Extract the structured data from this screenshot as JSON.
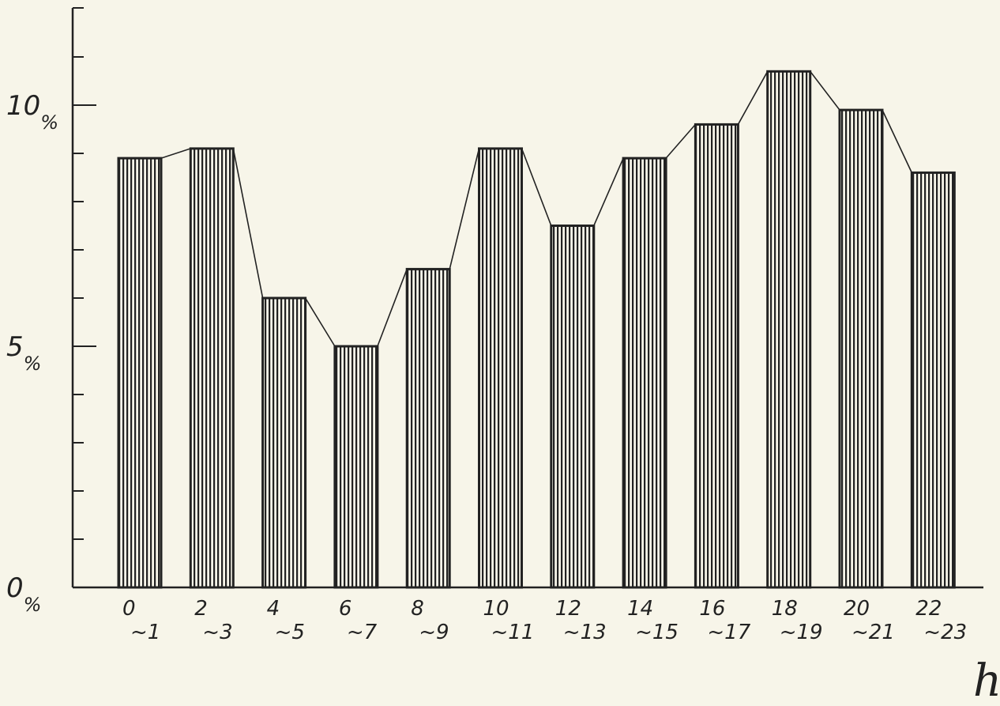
{
  "colors": {
    "background": "#f7f5e9",
    "ink": "#222222",
    "bar_fill": "#dcdcd2"
  },
  "chart_data": {
    "type": "bar",
    "categories": [
      {
        "top": "0",
        "bottom": "~1"
      },
      {
        "top": "2",
        "bottom": "~3"
      },
      {
        "top": "4",
        "bottom": "~5"
      },
      {
        "top": "6",
        "bottom": "~7"
      },
      {
        "top": "8",
        "bottom": "~9"
      },
      {
        "top": "10",
        "bottom": "~11"
      },
      {
        "top": "12",
        "bottom": "~13"
      },
      {
        "top": "14",
        "bottom": "~15"
      },
      {
        "top": "16",
        "bottom": "~17"
      },
      {
        "top": "18",
        "bottom": "~19"
      },
      {
        "top": "20",
        "bottom": "~21"
      },
      {
        "top": "22",
        "bottom": "~23"
      }
    ],
    "values": [
      8.9,
      9.1,
      6.0,
      5.0,
      6.6,
      9.1,
      7.5,
      8.9,
      9.6,
      10.7,
      9.9,
      8.6
    ],
    "ylim": [
      0,
      12
    ],
    "y_ticks": [
      {
        "value": 0,
        "label": "0",
        "suffix": "%"
      },
      {
        "value": 5,
        "label": "5",
        "suffix": "%"
      },
      {
        "value": 10,
        "label": "10",
        "suffix": "%"
      }
    ],
    "minor_tick_step": 1,
    "x_unit_label": "h",
    "connecting_line": true,
    "bar_pattern": "vertical-hatch",
    "grid": false
  }
}
